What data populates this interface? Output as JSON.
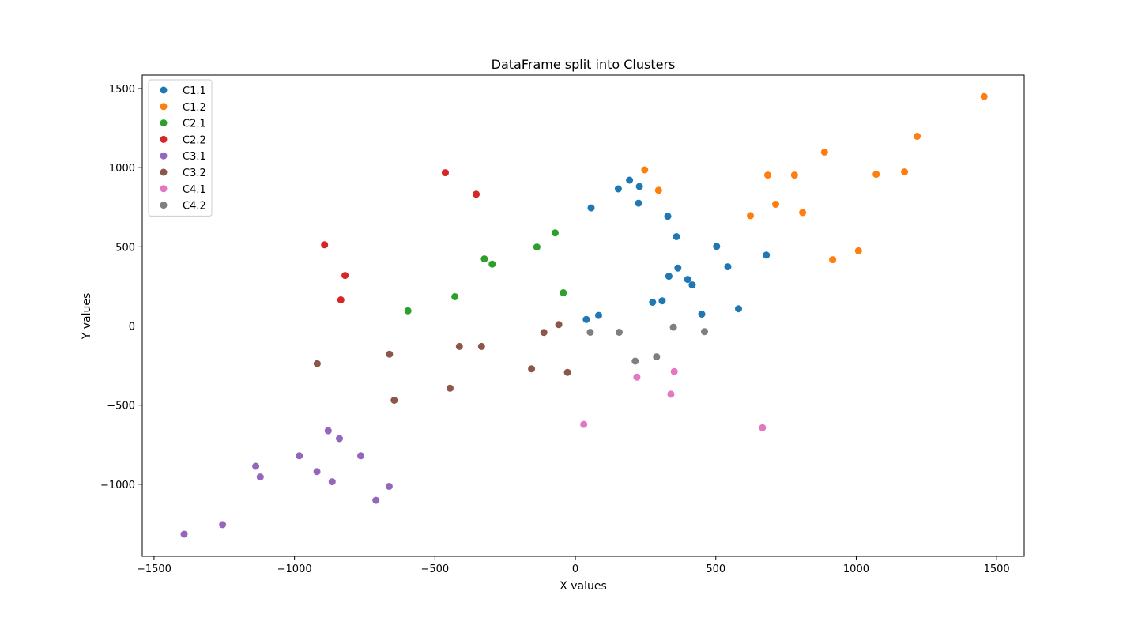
{
  "chart_data": {
    "type": "scatter",
    "title": "DataFrame split into Clusters",
    "xlabel": "X values",
    "ylabel": "Y values",
    "xlim": [
      -1542,
      1598
    ],
    "ylim": [
      -1455,
      1585
    ],
    "xticks": [
      -1500,
      -1000,
      -500,
      0,
      500,
      1000,
      1500
    ],
    "xtick_labels": [
      "−1500",
      "−1000",
      "−500",
      "0",
      "500",
      "1000",
      "1500"
    ],
    "yticks": [
      -1000,
      -500,
      0,
      500,
      1000,
      1500
    ],
    "ytick_labels": [
      "−1000",
      "−500",
      "0",
      "500",
      "1000",
      "1500"
    ],
    "grid": false,
    "legend_position": "top-left",
    "series": [
      {
        "name": "C1.1",
        "color": "#1f77b4",
        "points": [
          [
            56,
            746
          ],
          [
            153,
            866
          ],
          [
            193,
            921
          ],
          [
            228,
            881
          ],
          [
            225,
            776
          ],
          [
            329,
            693
          ],
          [
            360,
            564
          ],
          [
            503,
            503
          ],
          [
            543,
            374
          ],
          [
            680,
            448
          ],
          [
            365,
            366
          ],
          [
            333,
            314
          ],
          [
            400,
            294
          ],
          [
            416,
            259
          ],
          [
            275,
            150
          ],
          [
            309,
            159
          ],
          [
            450,
            75
          ],
          [
            581,
            109
          ],
          [
            83,
            67
          ],
          [
            39,
            41
          ]
        ]
      },
      {
        "name": "C1.2",
        "color": "#ff7f0e",
        "points": [
          [
            247,
            986
          ],
          [
            296,
            857
          ],
          [
            623,
            697
          ],
          [
            685,
            953
          ],
          [
            713,
            769
          ],
          [
            780,
            953
          ],
          [
            809,
            717
          ],
          [
            887,
            1099
          ],
          [
            916,
            419
          ],
          [
            1008,
            475
          ],
          [
            1071,
            958
          ],
          [
            1172,
            973
          ],
          [
            1217,
            1198
          ],
          [
            1455,
            1449
          ]
        ]
      },
      {
        "name": "C2.1",
        "color": "#2ca02c",
        "points": [
          [
            -72,
            588
          ],
          [
            -137,
            499
          ],
          [
            -324,
            424
          ],
          [
            -296,
            391
          ],
          [
            -43,
            210
          ],
          [
            -429,
            185
          ],
          [
            -596,
            96
          ]
        ]
      },
      {
        "name": "C2.2",
        "color": "#d62728",
        "points": [
          [
            -463,
            968
          ],
          [
            -353,
            832
          ],
          [
            -893,
            513
          ],
          [
            -820,
            319
          ],
          [
            -835,
            165
          ]
        ]
      },
      {
        "name": "C3.1",
        "color": "#9467bd",
        "points": [
          [
            -880,
            -662
          ],
          [
            -840,
            -711
          ],
          [
            -983,
            -820
          ],
          [
            -764,
            -820
          ],
          [
            -1138,
            -886
          ],
          [
            -920,
            -920
          ],
          [
            -1122,
            -954
          ],
          [
            -866,
            -984
          ],
          [
            -663,
            -1013
          ],
          [
            -710,
            -1101
          ],
          [
            -1256,
            -1255
          ],
          [
            -1393,
            -1315
          ]
        ]
      },
      {
        "name": "C3.2",
        "color": "#8c564b",
        "points": [
          [
            -59,
            9
          ],
          [
            -112,
            -41
          ],
          [
            -413,
            -129
          ],
          [
            -334,
            -129
          ],
          [
            -662,
            -178
          ],
          [
            -919,
            -238
          ],
          [
            -156,
            -271
          ],
          [
            -28,
            -293
          ],
          [
            -446,
            -393
          ],
          [
            -645,
            -469
          ]
        ]
      },
      {
        "name": "C4.1",
        "color": "#e377c2",
        "points": [
          [
            352,
            -288
          ],
          [
            219,
            -323
          ],
          [
            340,
            -431
          ],
          [
            30,
            -622
          ],
          [
            666,
            -643
          ]
        ]
      },
      {
        "name": "C4.2",
        "color": "#7f7f7f",
        "points": [
          [
            349,
            -8
          ],
          [
            460,
            -36
          ],
          [
            156,
            -40
          ],
          [
            53,
            -40
          ],
          [
            289,
            -195
          ],
          [
            213,
            -222
          ]
        ]
      }
    ]
  }
}
